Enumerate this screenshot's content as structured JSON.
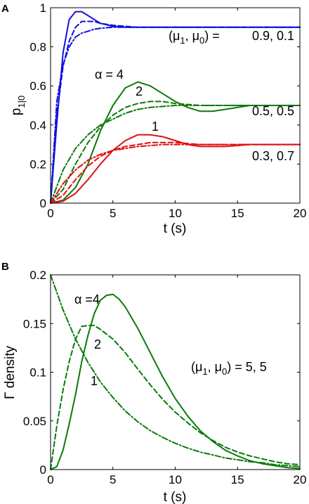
{
  "chart_data": [
    {
      "panel": "A",
      "type": "line",
      "xlabel": "t (s)",
      "ylabel": "p",
      "ylabel_sub": "1|0",
      "xlim": [
        0,
        20
      ],
      "ylim": [
        0,
        1
      ],
      "xticks": [
        "0",
        "5",
        "10",
        "15",
        "20"
      ],
      "yticks": [
        "0",
        "0.2",
        "0.4",
        "0.6",
        "0.8",
        "1"
      ],
      "annotations": {
        "legend_lhs": "(μ",
        "legend_sub1": "1",
        "legend_mid": ", μ",
        "legend_sub0": "0",
        "legend_rhs": ") =",
        "pair_blue": "0.9, 0.1",
        "pair_green": "0.5, 0.5",
        "pair_red": "0.3, 0.7",
        "alpha4": "α = 4",
        "alpha2": "2",
        "alpha1": "1"
      },
      "series": [
        {
          "color": "#1010e0",
          "dash": "solid",
          "x": [
            0,
            0.5,
            1,
            1.5,
            2,
            2.5,
            3,
            3.5,
            4,
            5,
            6,
            7,
            8,
            9,
            10,
            12,
            14,
            16,
            18,
            20
          ],
          "y": [
            0,
            0.41,
            0.77,
            0.94,
            0.98,
            0.98,
            0.96,
            0.94,
            0.92,
            0.905,
            0.9,
            0.9,
            0.9,
            0.9,
            0.9,
            0.9,
            0.9,
            0.9,
            0.9,
            0.9
          ]
        },
        {
          "color": "#1010e0",
          "dash": "dashed",
          "x": [
            0,
            0.5,
            1,
            1.5,
            2,
            2.5,
            3,
            3.5,
            4,
            5,
            6,
            7,
            8,
            9,
            10,
            12,
            14,
            16,
            18,
            20
          ],
          "y": [
            0,
            0.45,
            0.7,
            0.83,
            0.9,
            0.93,
            0.93,
            0.93,
            0.92,
            0.91,
            0.905,
            0.9,
            0.9,
            0.9,
            0.9,
            0.9,
            0.9,
            0.9,
            0.9,
            0.9
          ]
        },
        {
          "color": "#1010e0",
          "dash": "dashdot",
          "x": [
            0,
            0.5,
            1,
            1.5,
            2,
            2.5,
            3,
            3.5,
            4,
            5,
            6,
            7,
            8,
            9,
            10,
            12,
            14,
            16,
            18,
            20
          ],
          "y": [
            0,
            0.52,
            0.71,
            0.8,
            0.85,
            0.87,
            0.88,
            0.89,
            0.895,
            0.9,
            0.9,
            0.9,
            0.9,
            0.9,
            0.9,
            0.9,
            0.9,
            0.9,
            0.9,
            0.9
          ]
        },
        {
          "color": "#0a7a0a",
          "dash": "solid",
          "x": [
            0,
            1,
            2,
            3,
            4,
            5,
            6,
            7,
            8,
            9,
            10,
            11,
            12,
            13,
            14,
            15,
            16,
            18,
            20
          ],
          "y": [
            0,
            0.015,
            0.08,
            0.2,
            0.37,
            0.5,
            0.59,
            0.62,
            0.6,
            0.56,
            0.52,
            0.49,
            0.47,
            0.47,
            0.48,
            0.49,
            0.5,
            0.5,
            0.5
          ]
        },
        {
          "color": "#0a7a0a",
          "dash": "dashed",
          "x": [
            0,
            1,
            2,
            3,
            4,
            5,
            6,
            7,
            8,
            9,
            10,
            12,
            14,
            16,
            18,
            20
          ],
          "y": [
            0,
            0.07,
            0.2,
            0.31,
            0.39,
            0.45,
            0.49,
            0.51,
            0.52,
            0.52,
            0.51,
            0.5,
            0.5,
            0.5,
            0.5,
            0.5
          ]
        },
        {
          "color": "#0a7a0a",
          "dash": "dashdot",
          "x": [
            0,
            1,
            2,
            3,
            4,
            5,
            6,
            7,
            8,
            9,
            10,
            12,
            14,
            16,
            18,
            20
          ],
          "y": [
            0,
            0.17,
            0.28,
            0.35,
            0.4,
            0.43,
            0.46,
            0.48,
            0.49,
            0.495,
            0.5,
            0.5,
            0.5,
            0.5,
            0.5,
            0.5
          ]
        },
        {
          "color": "#e01010",
          "dash": "solid",
          "x": [
            0,
            1,
            2,
            3,
            4,
            5,
            6,
            7,
            8,
            9,
            10,
            11,
            12,
            13,
            14,
            16,
            18,
            20
          ],
          "y": [
            0,
            0.01,
            0.05,
            0.12,
            0.2,
            0.27,
            0.32,
            0.35,
            0.35,
            0.34,
            0.32,
            0.3,
            0.29,
            0.29,
            0.29,
            0.3,
            0.3,
            0.3
          ]
        },
        {
          "color": "#e01010",
          "dash": "dashed",
          "x": [
            0,
            1,
            2,
            3,
            4,
            5,
            6,
            7,
            8,
            9,
            10,
            12,
            14,
            16,
            18,
            20
          ],
          "y": [
            0,
            0.04,
            0.12,
            0.19,
            0.24,
            0.27,
            0.29,
            0.3,
            0.31,
            0.31,
            0.31,
            0.3,
            0.3,
            0.3,
            0.3,
            0.3
          ]
        },
        {
          "color": "#e01010",
          "dash": "dashdot",
          "x": [
            0,
            1,
            2,
            3,
            4,
            5,
            6,
            7,
            8,
            9,
            10,
            12,
            14,
            16,
            18,
            20
          ],
          "y": [
            0,
            0.1,
            0.17,
            0.22,
            0.25,
            0.27,
            0.28,
            0.29,
            0.295,
            0.3,
            0.3,
            0.3,
            0.3,
            0.3,
            0.3,
            0.3
          ]
        }
      ]
    },
    {
      "panel": "B",
      "type": "line",
      "xlabel": "t (s)",
      "ylabel": "Γ density",
      "xlim": [
        0,
        20
      ],
      "ylim": [
        0,
        0.2
      ],
      "xticks": [
        "0",
        "5",
        "10",
        "15",
        "20"
      ],
      "yticks": [
        "0",
        "0.05",
        "0.1",
        "0.15",
        "0.2"
      ],
      "annotations": {
        "legend_lhs": "(μ",
        "legend_sub1": "1",
        "legend_mid": ", μ",
        "legend_sub0": "0",
        "legend_rhs": ") = 5, 5",
        "alpha4": "α =4",
        "alpha2": "2",
        "alpha1": "1"
      },
      "series": [
        {
          "color": "#0a7a0a",
          "dash": "solid",
          "x": [
            0,
            0.5,
            1,
            1.5,
            2,
            2.5,
            3,
            3.5,
            4,
            4.5,
            5,
            5.5,
            6,
            7,
            8,
            9,
            10,
            11,
            12,
            13,
            14,
            15,
            16,
            17,
            18,
            19,
            20
          ],
          "y": [
            0,
            0.003,
            0.02,
            0.047,
            0.077,
            0.111,
            0.138,
            0.16,
            0.174,
            0.179,
            0.18,
            0.175,
            0.167,
            0.145,
            0.12,
            0.095,
            0.073,
            0.055,
            0.04,
            0.029,
            0.02,
            0.014,
            0.009,
            0.006,
            0.004,
            0.002,
            0.001
          ]
        },
        {
          "color": "#0a7a0a",
          "dash": "dashed",
          "x": [
            0,
            0.5,
            1,
            1.5,
            2,
            2.5,
            3,
            3.5,
            4,
            5,
            6,
            7,
            8,
            9,
            10,
            11,
            12,
            13,
            14,
            15,
            16,
            17,
            18,
            19,
            20
          ],
          "y": [
            0,
            0.045,
            0.082,
            0.111,
            0.134,
            0.147,
            0.148,
            0.148,
            0.144,
            0.134,
            0.12,
            0.103,
            0.087,
            0.072,
            0.059,
            0.048,
            0.038,
            0.03,
            0.023,
            0.018,
            0.014,
            0.011,
            0.008,
            0.006,
            0.005
          ]
        },
        {
          "color": "#0a7a0a",
          "dash": "dashdot",
          "x": [
            0,
            1,
            2,
            3,
            4,
            5,
            6,
            7,
            8,
            9,
            10,
            11,
            12,
            13,
            14,
            15,
            16,
            17,
            18,
            19,
            20
          ],
          "y": [
            0.2,
            0.164,
            0.134,
            0.11,
            0.09,
            0.074,
            0.06,
            0.049,
            0.04,
            0.033,
            0.027,
            0.022,
            0.018,
            0.015,
            0.012,
            0.01,
            0.008,
            0.007,
            0.005,
            0.004,
            0.003
          ]
        }
      ]
    }
  ]
}
